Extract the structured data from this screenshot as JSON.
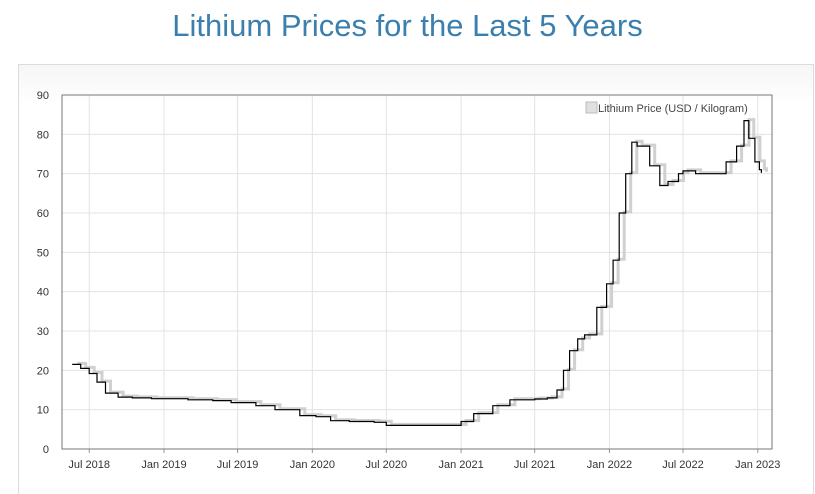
{
  "page": {
    "title": "Lithium Prices for the Last 5 Years"
  },
  "chart_data": {
    "type": "line",
    "title": "Lithium Prices for the Last 5 Years",
    "xlabel": "",
    "ylabel": "",
    "ylim": [
      0,
      90
    ],
    "yticks": [
      0,
      10,
      20,
      30,
      40,
      50,
      60,
      70,
      80,
      90
    ],
    "xticks": [
      "Jul 2018",
      "Jan 2019",
      "Jul 2019",
      "Jan 2020",
      "Jul 2020",
      "Jan 2021",
      "Jul 2021",
      "Jan 2022",
      "Jul 2022",
      "Jan 2023"
    ],
    "xlim": [
      "2018-04-25",
      "2023-02-05"
    ],
    "grid": true,
    "legend": {
      "position": "top-right",
      "entries": [
        "Lithium Price (USD / Kilogram)"
      ]
    },
    "colors": {
      "main": "#000000",
      "shadow": "#d0d0d0",
      "title": "#3a7fae"
    },
    "series": [
      {
        "name": "Lithium Price (USD / Kilogram)",
        "points": [
          [
            "2018-05-20",
            21.5
          ],
          [
            "2018-06-10",
            20.5
          ],
          [
            "2018-07-01",
            19.2
          ],
          [
            "2018-07-20",
            17.0
          ],
          [
            "2018-08-10",
            14.2
          ],
          [
            "2018-09-10",
            13.2
          ],
          [
            "2018-10-15",
            13.0
          ],
          [
            "2018-12-01",
            12.8
          ],
          [
            "2019-03-01",
            12.5
          ],
          [
            "2019-05-01",
            12.3
          ],
          [
            "2019-06-15",
            11.8
          ],
          [
            "2019-08-15",
            11.0
          ],
          [
            "2019-10-01",
            10.0
          ],
          [
            "2019-12-01",
            8.5
          ],
          [
            "2020-01-10",
            8.2
          ],
          [
            "2020-02-15",
            7.2
          ],
          [
            "2020-04-01",
            7.0
          ],
          [
            "2020-06-01",
            6.8
          ],
          [
            "2020-07-01",
            6.0
          ],
          [
            "2020-09-01",
            6.0
          ],
          [
            "2020-12-20",
            6.0
          ],
          [
            "2021-01-01",
            7.0
          ],
          [
            "2021-02-01",
            9.0
          ],
          [
            "2021-03-20",
            11.0
          ],
          [
            "2021-05-01",
            12.5
          ],
          [
            "2021-07-01",
            12.7
          ],
          [
            "2021-08-01",
            13.0
          ],
          [
            "2021-08-25",
            15.0
          ],
          [
            "2021-09-10",
            20.0
          ],
          [
            "2021-09-25",
            25.0
          ],
          [
            "2021-10-15",
            28.0
          ],
          [
            "2021-11-01",
            29.0
          ],
          [
            "2021-12-01",
            36.0
          ],
          [
            "2021-12-25",
            42.0
          ],
          [
            "2022-01-10",
            48.0
          ],
          [
            "2022-01-25",
            60.0
          ],
          [
            "2022-02-10",
            70.0
          ],
          [
            "2022-02-25",
            78.0
          ],
          [
            "2022-03-10",
            77.0
          ],
          [
            "2022-04-10",
            72.0
          ],
          [
            "2022-05-05",
            67.0
          ],
          [
            "2022-05-25",
            68.0
          ],
          [
            "2022-06-20",
            70.0
          ],
          [
            "2022-07-01",
            70.7
          ],
          [
            "2022-08-01",
            70.0
          ],
          [
            "2022-09-15",
            70.0
          ],
          [
            "2022-10-15",
            73.0
          ],
          [
            "2022-11-10",
            77.0
          ],
          [
            "2022-11-28",
            83.5
          ],
          [
            "2022-12-10",
            79.0
          ],
          [
            "2022-12-25",
            73.0
          ],
          [
            "2023-01-05",
            71.0
          ],
          [
            "2023-01-10",
            70.2
          ]
        ]
      }
    ]
  }
}
